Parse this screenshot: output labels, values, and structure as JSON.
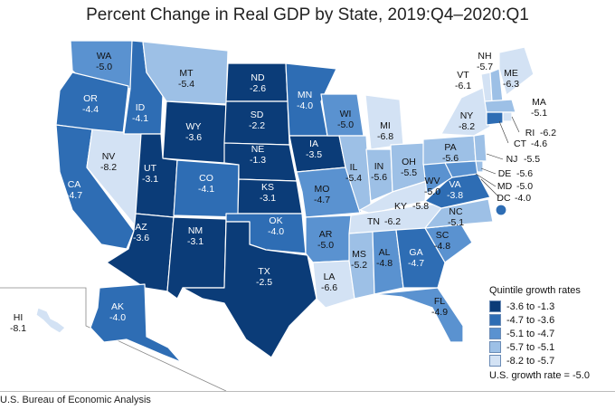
{
  "title": "Percent Change in Real GDP by State, 2019:Q4–2020:Q1",
  "colors": {
    "q1": "#0b3c78",
    "q2": "#2e6db4",
    "q3": "#5a92d0",
    "q4": "#9dc0e6",
    "q5": "#d3e2f4"
  },
  "states": [
    {
      "abbr": "WA",
      "value": "-5.0",
      "cls": "q3"
    },
    {
      "abbr": "OR",
      "value": "-4.4",
      "cls": "q2"
    },
    {
      "abbr": "CA",
      "value": "-4.7",
      "cls": "q2"
    },
    {
      "abbr": "NV",
      "value": "-8.2",
      "cls": "q5"
    },
    {
      "abbr": "ID",
      "value": "-4.1",
      "cls": "q2"
    },
    {
      "abbr": "MT",
      "value": "-5.4",
      "cls": "q4"
    },
    {
      "abbr": "WY",
      "value": "-3.6",
      "cls": "q1"
    },
    {
      "abbr": "UT",
      "value": "-3.1",
      "cls": "q1"
    },
    {
      "abbr": "AZ",
      "value": "-3.6",
      "cls": "q1"
    },
    {
      "abbr": "CO",
      "value": "-4.1",
      "cls": "q2"
    },
    {
      "abbr": "NM",
      "value": "-3.1",
      "cls": "q1"
    },
    {
      "abbr": "ND",
      "value": "-2.6",
      "cls": "q1"
    },
    {
      "abbr": "SD",
      "value": "-2.2",
      "cls": "q1"
    },
    {
      "abbr": "NE",
      "value": "-1.3",
      "cls": "q1"
    },
    {
      "abbr": "KS",
      "value": "-3.1",
      "cls": "q1"
    },
    {
      "abbr": "OK",
      "value": "-4.0",
      "cls": "q2"
    },
    {
      "abbr": "TX",
      "value": "-2.5",
      "cls": "q1"
    },
    {
      "abbr": "MN",
      "value": "-4.0",
      "cls": "q2"
    },
    {
      "abbr": "IA",
      "value": "-3.5",
      "cls": "q1"
    },
    {
      "abbr": "MO",
      "value": "-4.7",
      "cls": "q3"
    },
    {
      "abbr": "AR",
      "value": "-5.0",
      "cls": "q3"
    },
    {
      "abbr": "LA",
      "value": "-6.6",
      "cls": "q5"
    },
    {
      "abbr": "WI",
      "value": "-5.0",
      "cls": "q3"
    },
    {
      "abbr": "IL",
      "value": "-5.4",
      "cls": "q4"
    },
    {
      "abbr": "MI",
      "value": "-6.8",
      "cls": "q5"
    },
    {
      "abbr": "IN",
      "value": "-5.6",
      "cls": "q4"
    },
    {
      "abbr": "OH",
      "value": "-5.5",
      "cls": "q4"
    },
    {
      "abbr": "KY",
      "value": "-5.8",
      "cls": "q5"
    },
    {
      "abbr": "TN",
      "value": "-6.2",
      "cls": "q5"
    },
    {
      "abbr": "MS",
      "value": "-5.2",
      "cls": "q4"
    },
    {
      "abbr": "AL",
      "value": "-4.8",
      "cls": "q3"
    },
    {
      "abbr": "GA",
      "value": "-4.7",
      "cls": "q2"
    },
    {
      "abbr": "FL",
      "value": "-4.9",
      "cls": "q3"
    },
    {
      "abbr": "SC",
      "value": "-4.8",
      "cls": "q3"
    },
    {
      "abbr": "NC",
      "value": "-5.1",
      "cls": "q4"
    },
    {
      "abbr": "VA",
      "value": "-3.8",
      "cls": "q2"
    },
    {
      "abbr": "WV",
      "value": "-5.0",
      "cls": "q3"
    },
    {
      "abbr": "PA",
      "value": "-5.6",
      "cls": "q4"
    },
    {
      "abbr": "NY",
      "value": "-8.2",
      "cls": "q5"
    },
    {
      "abbr": "VT",
      "value": "-6.1",
      "cls": "q5"
    },
    {
      "abbr": "NH",
      "value": "-5.7",
      "cls": "q4"
    },
    {
      "abbr": "ME",
      "value": "-6.3",
      "cls": "q5"
    },
    {
      "abbr": "MA",
      "value": "-5.1",
      "cls": "q4"
    },
    {
      "abbr": "RI",
      "value": "-6.2",
      "cls": "q5"
    },
    {
      "abbr": "CT",
      "value": "-4.6",
      "cls": "q2"
    },
    {
      "abbr": "NJ",
      "value": "-5.5",
      "cls": "q4"
    },
    {
      "abbr": "DE",
      "value": "-5.6",
      "cls": "q4"
    },
    {
      "abbr": "MD",
      "value": "-5.0",
      "cls": "q3"
    },
    {
      "abbr": "DC",
      "value": "-4.0",
      "cls": "q2"
    },
    {
      "abbr": "AK",
      "value": "-4.0",
      "cls": "q2"
    },
    {
      "abbr": "HI",
      "value": "-8.1",
      "cls": "q5"
    }
  ],
  "legend": {
    "title": "Quintile growth rates",
    "items": [
      {
        "label": "-3.6 to -1.3",
        "cls": "q1"
      },
      {
        "label": "-4.7 to -3.6",
        "cls": "q2"
      },
      {
        "label": "-5.1 to -4.7",
        "cls": "q3"
      },
      {
        "label": "-5.7 to -5.1",
        "cls": "q4"
      },
      {
        "label": "-8.2 to -5.7",
        "cls": "q5"
      }
    ],
    "us_rate": "U.S. growth rate = -5.0"
  },
  "source": "U.S. Bureau of Economic Analysis"
}
